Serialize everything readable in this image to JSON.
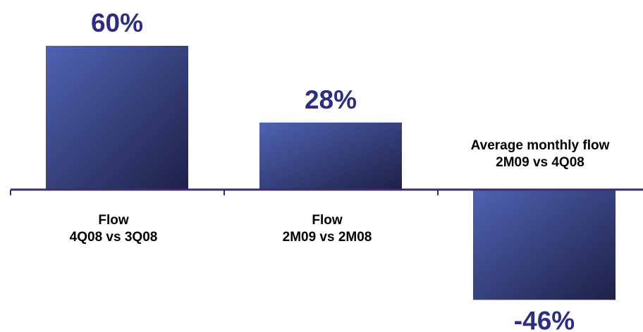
{
  "chart_data": {
    "type": "bar",
    "title": "",
    "xlabel": "",
    "ylabel": "",
    "categories": [
      [
        "Flow",
        "4Q08 vs 3Q08"
      ],
      [
        "Flow",
        "2M09 vs 2M08"
      ],
      [
        "Average monthly flow",
        "2M09 vs 4Q08"
      ]
    ],
    "values": [
      60,
      28,
      -46
    ],
    "value_labels": [
      "60%",
      "28%",
      "-46%"
    ],
    "ylim": [
      -46,
      60
    ],
    "grid": false,
    "legend": "none",
    "colors": {
      "bar_light": "#4f63b3",
      "bar_dark": "#1e2046",
      "axis": "#3c2c6e",
      "value_text": "#2b2e83",
      "category_text": "#000000"
    }
  }
}
